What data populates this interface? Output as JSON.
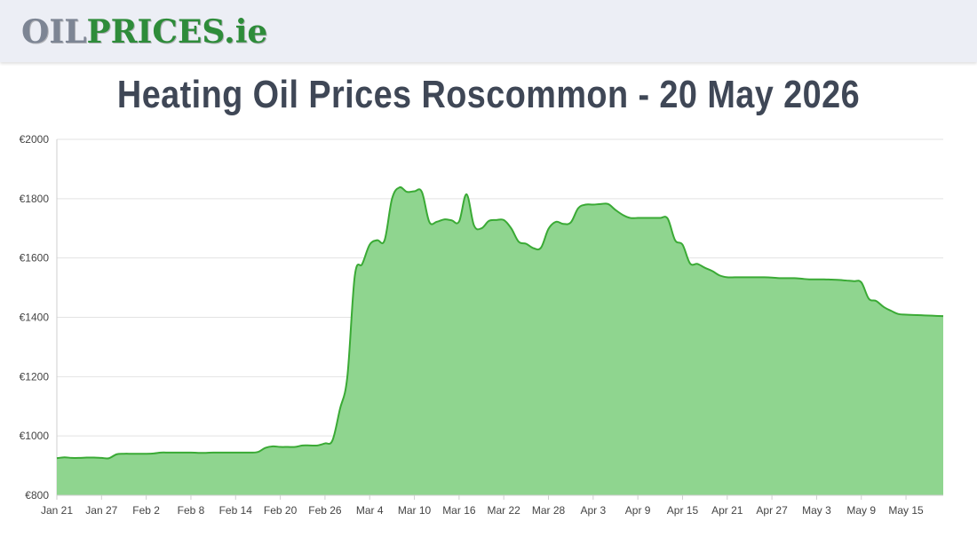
{
  "header": {
    "logo_oil": "OIL",
    "logo_prices": "PRICES",
    "logo_tld": ".ie"
  },
  "page": {
    "title": "Heating Oil Prices Roscommon - 20 May 2026"
  },
  "colors": {
    "line": "#3aaa35",
    "fill": "#8fd58f",
    "grid": "#e3e3e3",
    "logo_grey": "#7d8594",
    "logo_green": "#2e8c3a"
  },
  "chart_data": {
    "type": "area",
    "title": "",
    "xlabel": "",
    "ylabel": "",
    "ylim": [
      800,
      2000
    ],
    "y_ticks": [
      "€800",
      "€1000",
      "€1200",
      "€1400",
      "€1600",
      "€1800",
      "€2000"
    ],
    "y_tick_values": [
      800,
      1000,
      1200,
      1400,
      1600,
      1800,
      2000
    ],
    "x_tick_labels": [
      "Jan 21",
      "Jan 27",
      "Feb 2",
      "Feb 8",
      "Feb 14",
      "Feb 20",
      "Feb 26",
      "Mar 4",
      "Mar 10",
      "Mar 16",
      "Mar 22",
      "Mar 28",
      "Apr 3",
      "Apr 9",
      "Apr 15",
      "Apr 21",
      "Apr 27",
      "May 3",
      "May 9",
      "May 15"
    ],
    "grid": true,
    "series": [
      {
        "points": [
          [
            "Jan 21",
            925
          ],
          [
            "Jan 22",
            928
          ],
          [
            "Jan 23",
            926
          ],
          [
            "Jan 24",
            926
          ],
          [
            "Jan 25",
            927
          ],
          [
            "Jan 26",
            927
          ],
          [
            "Jan 27",
            926
          ],
          [
            "Jan 28",
            925
          ],
          [
            "Jan 29",
            938
          ],
          [
            "Jan 30",
            940
          ],
          [
            "Jan 31",
            940
          ],
          [
            "Feb 1",
            940
          ],
          [
            "Feb 2",
            940
          ],
          [
            "Feb 3",
            941
          ],
          [
            "Feb 4",
            944
          ],
          [
            "Feb 5",
            944
          ],
          [
            "Feb 6",
            944
          ],
          [
            "Feb 7",
            944
          ],
          [
            "Feb 8",
            944
          ],
          [
            "Feb 9",
            943
          ],
          [
            "Feb 10",
            943
          ],
          [
            "Feb 11",
            944
          ],
          [
            "Feb 12",
            944
          ],
          [
            "Feb 13",
            944
          ],
          [
            "Feb 14",
            944
          ],
          [
            "Feb 15",
            944
          ],
          [
            "Feb 16",
            944
          ],
          [
            "Feb 17",
            946
          ],
          [
            "Feb 18",
            960
          ],
          [
            "Feb 19",
            965
          ],
          [
            "Feb 20",
            963
          ],
          [
            "Feb 21",
            963
          ],
          [
            "Feb 22",
            963
          ],
          [
            "Feb 23",
            968
          ],
          [
            "Feb 24",
            968
          ],
          [
            "Feb 25",
            968
          ],
          [
            "Feb 26",
            975
          ],
          [
            "Feb 27",
            985
          ],
          [
            "Feb 28",
            1090
          ],
          [
            "Mar 1",
            1200
          ],
          [
            "Mar 2",
            1540
          ],
          [
            "Mar 3",
            1580
          ],
          [
            "Mar 4",
            1645
          ],
          [
            "Mar 5",
            1660
          ],
          [
            "Mar 6",
            1660
          ],
          [
            "Mar 7",
            1800
          ],
          [
            "Mar 8",
            1838
          ],
          [
            "Mar 9",
            1823
          ],
          [
            "Mar 10",
            1825
          ],
          [
            "Mar 11",
            1823
          ],
          [
            "Mar 12",
            1722
          ],
          [
            "Mar 13",
            1722
          ],
          [
            "Mar 14",
            1730
          ],
          [
            "Mar 15",
            1727
          ],
          [
            "Mar 16",
            1723
          ],
          [
            "Mar 17",
            1815
          ],
          [
            "Mar 18",
            1710
          ],
          [
            "Mar 19",
            1700
          ],
          [
            "Mar 20",
            1725
          ],
          [
            "Mar 21",
            1728
          ],
          [
            "Mar 22",
            1728
          ],
          [
            "Mar 23",
            1700
          ],
          [
            "Mar 24",
            1655
          ],
          [
            "Mar 25",
            1648
          ],
          [
            "Mar 26",
            1633
          ],
          [
            "Mar 27",
            1635
          ],
          [
            "Mar 28",
            1698
          ],
          [
            "Mar 29",
            1722
          ],
          [
            "Mar 30",
            1715
          ],
          [
            "Mar 31",
            1720
          ],
          [
            "Apr 1",
            1768
          ],
          [
            "Apr 2",
            1780
          ],
          [
            "Apr 3",
            1780
          ],
          [
            "Apr 4",
            1782
          ],
          [
            "Apr 5",
            1782
          ],
          [
            "Apr 6",
            1762
          ],
          [
            "Apr 7",
            1745
          ],
          [
            "Apr 8",
            1735
          ],
          [
            "Apr 9",
            1735
          ],
          [
            "Apr 10",
            1735
          ],
          [
            "Apr 11",
            1735
          ],
          [
            "Apr 12",
            1735
          ],
          [
            "Apr 13",
            1733
          ],
          [
            "Apr 14",
            1660
          ],
          [
            "Apr 15",
            1645
          ],
          [
            "Apr 16",
            1582
          ],
          [
            "Apr 17",
            1580
          ],
          [
            "Apr 18",
            1567
          ],
          [
            "Apr 19",
            1556
          ],
          [
            "Apr 20",
            1541
          ],
          [
            "Apr 21",
            1535
          ],
          [
            "Apr 22",
            1535
          ],
          [
            "Apr 23",
            1535
          ],
          [
            "Apr 24",
            1535
          ],
          [
            "Apr 25",
            1535
          ],
          [
            "Apr 26",
            1535
          ],
          [
            "Apr 27",
            1534
          ],
          [
            "Apr 28",
            1532
          ],
          [
            "Apr 29",
            1532
          ],
          [
            "Apr 30",
            1532
          ],
          [
            "May 1",
            1530
          ],
          [
            "May 2",
            1528
          ],
          [
            "May 3",
            1528
          ],
          [
            "May 4",
            1528
          ],
          [
            "May 5",
            1527
          ],
          [
            "May 6",
            1526
          ],
          [
            "May 7",
            1524
          ],
          [
            "May 8",
            1522
          ],
          [
            "May 9",
            1518
          ],
          [
            "May 10",
            1463
          ],
          [
            "May 11",
            1455
          ],
          [
            "May 12",
            1435
          ],
          [
            "May 13",
            1422
          ],
          [
            "May 14",
            1411
          ],
          [
            "May 15",
            1409
          ],
          [
            "May 16",
            1408
          ],
          [
            "May 17",
            1407
          ],
          [
            "May 18",
            1406
          ],
          [
            "May 19",
            1405
          ],
          [
            "May 20",
            1404
          ]
        ]
      }
    ]
  }
}
